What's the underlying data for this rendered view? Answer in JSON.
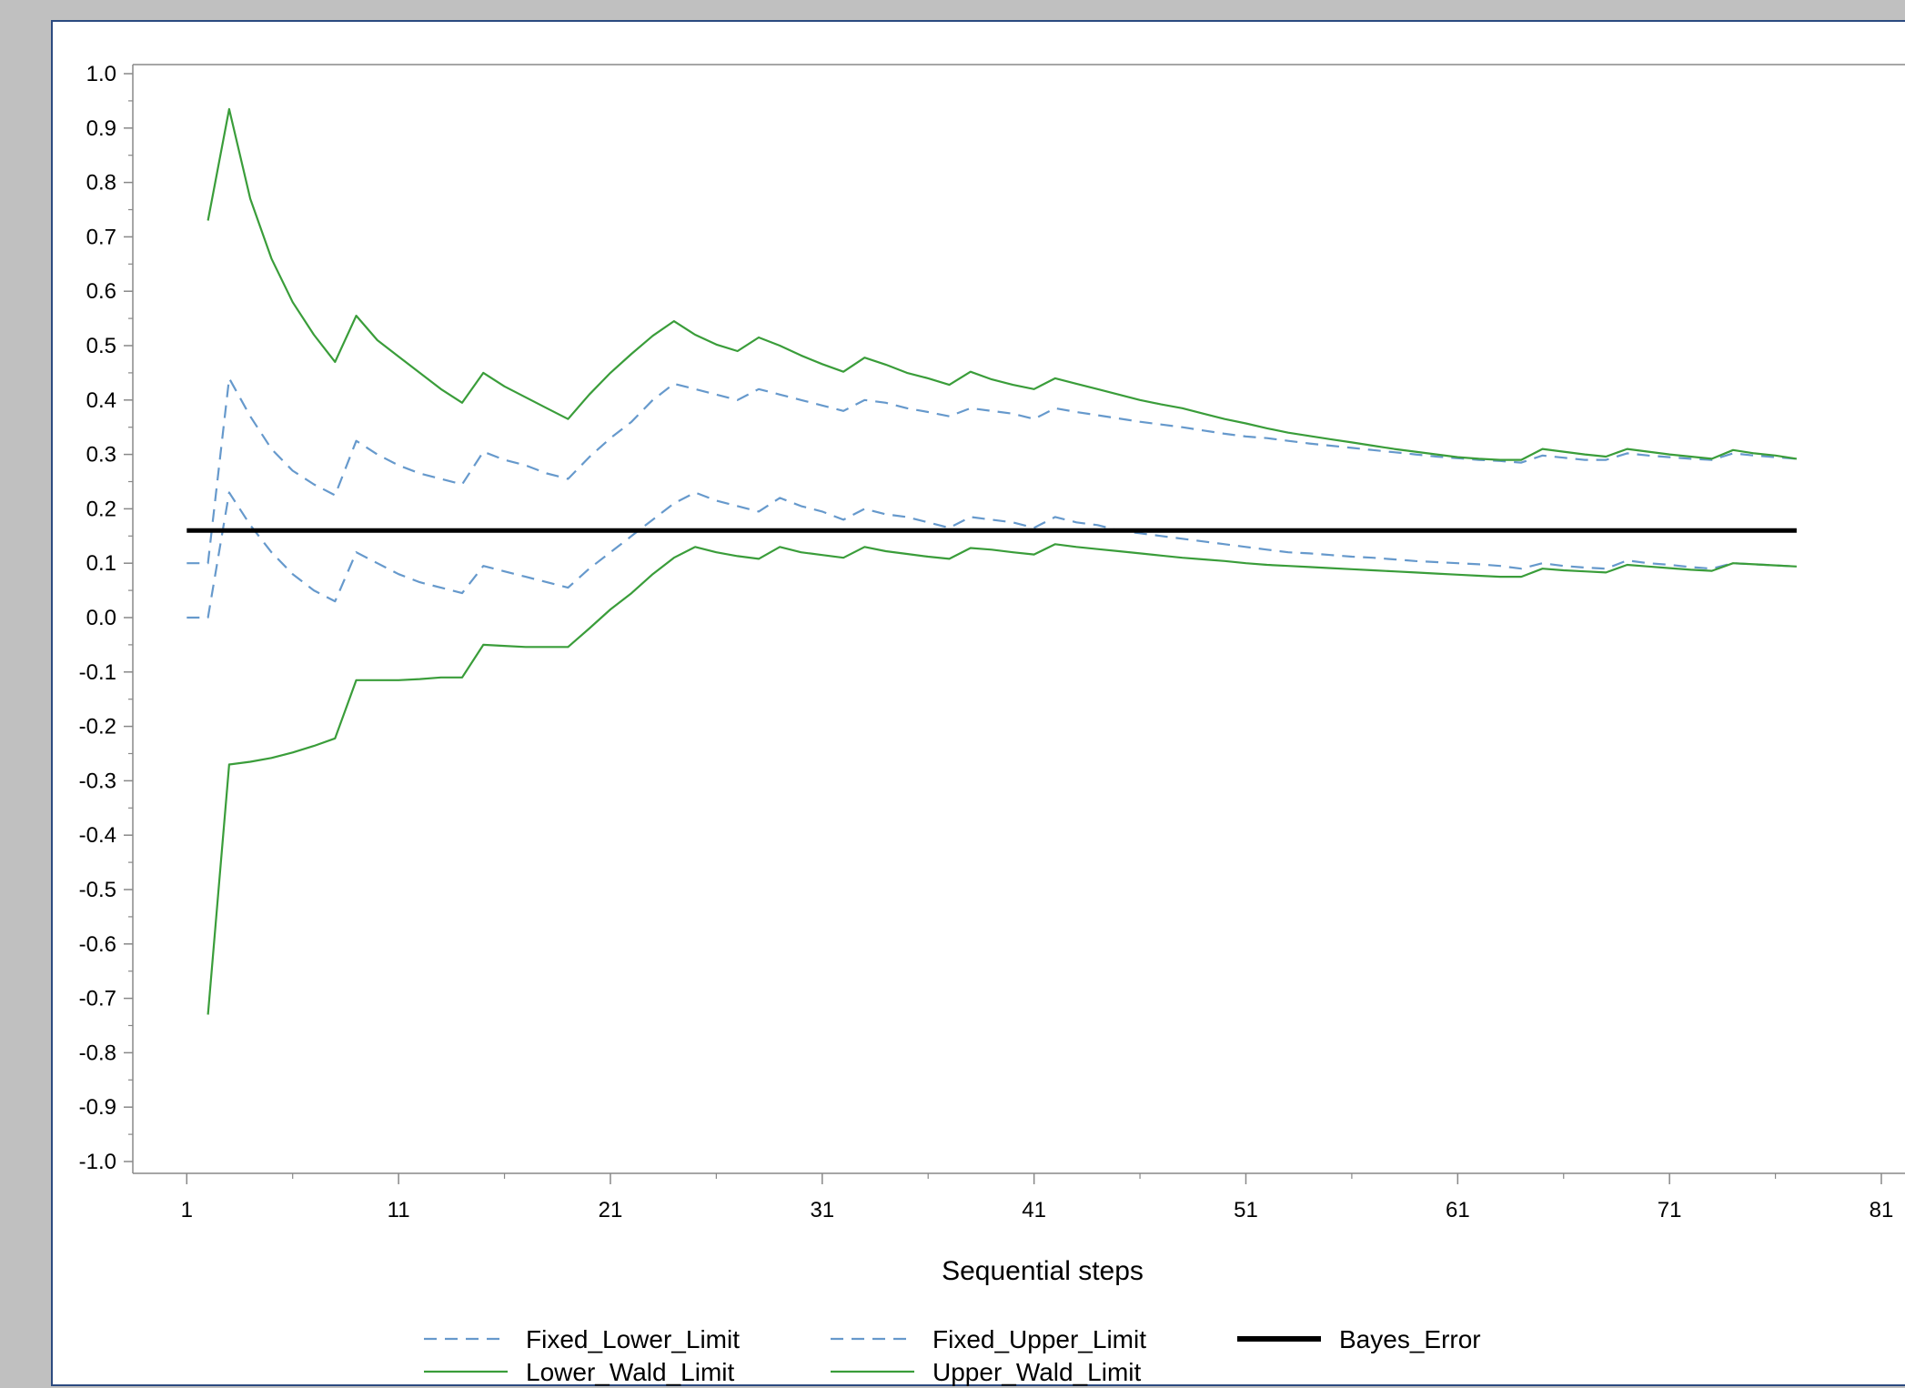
{
  "chart_data": {
    "type": "line",
    "title": "",
    "xlabel": "Sequential steps",
    "ylabel": "",
    "xlim": [
      0,
      81
    ],
    "ylim": [
      -1.0,
      1.0
    ],
    "x_ticks": [
      1,
      11,
      21,
      31,
      41,
      51,
      61,
      71,
      81
    ],
    "y_ticks": [
      1.0,
      0.9,
      0.8,
      0.7,
      0.6,
      0.5,
      0.4,
      0.3,
      0.2,
      0.1,
      0.0,
      -0.1,
      -0.2,
      -0.3,
      -0.4,
      -0.5,
      -0.6,
      -0.7,
      -0.8,
      -0.9,
      -1.0
    ],
    "y_tick_labels": [
      "1.0",
      "0.9",
      "0.8",
      "0.7",
      "0.6",
      "0.5",
      "0.4",
      "0.3",
      "0.2",
      "0.1",
      "0.0",
      "-0.1",
      "-0.2",
      "-0.3",
      "-0.4",
      "-0.5",
      "-0.6",
      "-0.7",
      "-0.8",
      "-0.9",
      "-1.0"
    ],
    "grid": false,
    "legend_position": "bottom",
    "series": [
      {
        "name": "Fixed_Lower_Limit",
        "color": "#6699cc",
        "dash": "dashed",
        "points": [
          [
            1,
            0.0
          ],
          [
            2,
            0.0
          ],
          [
            3,
            0.23
          ],
          [
            4,
            0.17
          ],
          [
            5,
            0.12
          ],
          [
            6,
            0.08
          ],
          [
            7,
            0.05
          ],
          [
            8,
            0.03
          ],
          [
            9,
            0.12
          ],
          [
            10,
            0.1
          ],
          [
            11,
            0.08
          ],
          [
            12,
            0.065
          ],
          [
            13,
            0.055
          ],
          [
            14,
            0.045
          ],
          [
            15,
            0.095
          ],
          [
            16,
            0.085
          ],
          [
            17,
            0.075
          ],
          [
            18,
            0.065
          ],
          [
            19,
            0.055
          ],
          [
            20,
            0.09
          ],
          [
            21,
            0.12
          ],
          [
            22,
            0.15
          ],
          [
            23,
            0.18
          ],
          [
            24,
            0.21
          ],
          [
            25,
            0.23
          ],
          [
            26,
            0.215
          ],
          [
            27,
            0.205
          ],
          [
            28,
            0.195
          ],
          [
            29,
            0.22
          ],
          [
            30,
            0.205
          ],
          [
            31,
            0.195
          ],
          [
            32,
            0.18
          ],
          [
            33,
            0.2
          ],
          [
            34,
            0.19
          ],
          [
            35,
            0.185
          ],
          [
            36,
            0.175
          ],
          [
            37,
            0.165
          ],
          [
            38,
            0.185
          ],
          [
            39,
            0.18
          ],
          [
            40,
            0.175
          ],
          [
            41,
            0.165
          ],
          [
            42,
            0.185
          ],
          [
            43,
            0.175
          ],
          [
            44,
            0.17
          ],
          [
            45,
            0.16
          ],
          [
            46,
            0.155
          ],
          [
            47,
            0.15
          ],
          [
            48,
            0.145
          ],
          [
            49,
            0.14
          ],
          [
            50,
            0.135
          ],
          [
            51,
            0.13
          ],
          [
            52,
            0.125
          ],
          [
            53,
            0.12
          ],
          [
            54,
            0.118
          ],
          [
            55,
            0.115
          ],
          [
            56,
            0.112
          ],
          [
            57,
            0.11
          ],
          [
            58,
            0.107
          ],
          [
            59,
            0.104
          ],
          [
            60,
            0.102
          ],
          [
            61,
            0.1
          ],
          [
            62,
            0.098
          ],
          [
            63,
            0.095
          ],
          [
            64,
            0.09
          ],
          [
            65,
            0.1
          ],
          [
            66,
            0.095
          ],
          [
            67,
            0.092
          ],
          [
            68,
            0.09
          ],
          [
            69,
            0.105
          ],
          [
            70,
            0.1
          ],
          [
            71,
            0.097
          ],
          [
            72,
            0.093
          ],
          [
            73,
            0.09
          ],
          [
            74,
            0.1
          ],
          [
            75,
            0.098
          ],
          [
            76,
            0.096
          ],
          [
            77,
            0.094
          ]
        ]
      },
      {
        "name": "Fixed_Upper_Limit",
        "color": "#6699cc",
        "dash": "dashed",
        "points": [
          [
            1,
            0.1
          ],
          [
            2,
            0.1
          ],
          [
            3,
            0.44
          ],
          [
            4,
            0.37
          ],
          [
            5,
            0.31
          ],
          [
            6,
            0.27
          ],
          [
            7,
            0.245
          ],
          [
            8,
            0.225
          ],
          [
            9,
            0.325
          ],
          [
            10,
            0.3
          ],
          [
            11,
            0.28
          ],
          [
            12,
            0.265
          ],
          [
            13,
            0.255
          ],
          [
            14,
            0.245
          ],
          [
            15,
            0.305
          ],
          [
            16,
            0.29
          ],
          [
            17,
            0.28
          ],
          [
            18,
            0.265
          ],
          [
            19,
            0.255
          ],
          [
            20,
            0.295
          ],
          [
            21,
            0.33
          ],
          [
            22,
            0.36
          ],
          [
            23,
            0.4
          ],
          [
            24,
            0.43
          ],
          [
            25,
            0.42
          ],
          [
            26,
            0.41
          ],
          [
            27,
            0.4
          ],
          [
            28,
            0.42
          ],
          [
            29,
            0.41
          ],
          [
            30,
            0.4
          ],
          [
            31,
            0.39
          ],
          [
            32,
            0.38
          ],
          [
            33,
            0.4
          ],
          [
            34,
            0.395
          ],
          [
            35,
            0.385
          ],
          [
            36,
            0.378
          ],
          [
            37,
            0.37
          ],
          [
            38,
            0.385
          ],
          [
            39,
            0.38
          ],
          [
            40,
            0.375
          ],
          [
            41,
            0.365
          ],
          [
            42,
            0.385
          ],
          [
            43,
            0.378
          ],
          [
            44,
            0.372
          ],
          [
            45,
            0.366
          ],
          [
            46,
            0.36
          ],
          [
            47,
            0.355
          ],
          [
            48,
            0.35
          ],
          [
            49,
            0.344
          ],
          [
            50,
            0.338
          ],
          [
            51,
            0.333
          ],
          [
            52,
            0.33
          ],
          [
            53,
            0.325
          ],
          [
            54,
            0.32
          ],
          [
            55,
            0.316
          ],
          [
            56,
            0.312
          ],
          [
            57,
            0.308
          ],
          [
            58,
            0.304
          ],
          [
            59,
            0.3
          ],
          [
            60,
            0.296
          ],
          [
            61,
            0.293
          ],
          [
            62,
            0.29
          ],
          [
            63,
            0.288
          ],
          [
            64,
            0.285
          ],
          [
            65,
            0.298
          ],
          [
            66,
            0.294
          ],
          [
            67,
            0.29
          ],
          [
            68,
            0.29
          ],
          [
            69,
            0.302
          ],
          [
            70,
            0.298
          ],
          [
            71,
            0.295
          ],
          [
            72,
            0.292
          ],
          [
            73,
            0.29
          ],
          [
            74,
            0.302
          ],
          [
            75,
            0.298
          ],
          [
            76,
            0.295
          ],
          [
            77,
            0.292
          ]
        ]
      },
      {
        "name": "Lower_Wald_Limit",
        "color": "#3a9d3a",
        "dash": "solid",
        "points": [
          [
            2,
            -0.73
          ],
          [
            3,
            -0.27
          ],
          [
            4,
            -0.265
          ],
          [
            5,
            -0.258
          ],
          [
            6,
            -0.248
          ],
          [
            7,
            -0.236
          ],
          [
            8,
            -0.222
          ],
          [
            9,
            -0.115
          ],
          [
            10,
            -0.115
          ],
          [
            11,
            -0.115
          ],
          [
            12,
            -0.113
          ],
          [
            13,
            -0.11
          ],
          [
            14,
            -0.11
          ],
          [
            15,
            -0.05
          ],
          [
            16,
            -0.052
          ],
          [
            17,
            -0.054
          ],
          [
            18,
            -0.054
          ],
          [
            19,
            -0.054
          ],
          [
            20,
            -0.02
          ],
          [
            21,
            0.015
          ],
          [
            22,
            0.045
          ],
          [
            23,
            0.08
          ],
          [
            24,
            0.11
          ],
          [
            25,
            0.13
          ],
          [
            26,
            0.12
          ],
          [
            27,
            0.113
          ],
          [
            28,
            0.108
          ],
          [
            29,
            0.13
          ],
          [
            30,
            0.12
          ],
          [
            31,
            0.115
          ],
          [
            32,
            0.11
          ],
          [
            33,
            0.13
          ],
          [
            34,
            0.122
          ],
          [
            35,
            0.117
          ],
          [
            36,
            0.112
          ],
          [
            37,
            0.108
          ],
          [
            38,
            0.128
          ],
          [
            39,
            0.125
          ],
          [
            40,
            0.12
          ],
          [
            41,
            0.116
          ],
          [
            42,
            0.135
          ],
          [
            43,
            0.13
          ],
          [
            44,
            0.126
          ],
          [
            45,
            0.122
          ],
          [
            46,
            0.118
          ],
          [
            47,
            0.114
          ],
          [
            48,
            0.11
          ],
          [
            49,
            0.107
          ],
          [
            50,
            0.104
          ],
          [
            51,
            0.1
          ],
          [
            52,
            0.097
          ],
          [
            53,
            0.095
          ],
          [
            54,
            0.093
          ],
          [
            55,
            0.091
          ],
          [
            56,
            0.089
          ],
          [
            57,
            0.087
          ],
          [
            58,
            0.085
          ],
          [
            59,
            0.083
          ],
          [
            60,
            0.081
          ],
          [
            61,
            0.079
          ],
          [
            62,
            0.077
          ],
          [
            63,
            0.075
          ],
          [
            64,
            0.075
          ],
          [
            65,
            0.09
          ],
          [
            66,
            0.087
          ],
          [
            67,
            0.085
          ],
          [
            68,
            0.083
          ],
          [
            69,
            0.097
          ],
          [
            70,
            0.094
          ],
          [
            71,
            0.091
          ],
          [
            72,
            0.088
          ],
          [
            73,
            0.086
          ],
          [
            74,
            0.1
          ],
          [
            75,
            0.098
          ],
          [
            76,
            0.096
          ],
          [
            77,
            0.094
          ]
        ]
      },
      {
        "name": "Upper_Wald_Limit",
        "color": "#3a9d3a",
        "dash": "solid",
        "points": [
          [
            2,
            0.73
          ],
          [
            3,
            0.935
          ],
          [
            4,
            0.77
          ],
          [
            5,
            0.66
          ],
          [
            6,
            0.58
          ],
          [
            7,
            0.52
          ],
          [
            8,
            0.47
          ],
          [
            9,
            0.555
          ],
          [
            10,
            0.51
          ],
          [
            11,
            0.48
          ],
          [
            12,
            0.45
          ],
          [
            13,
            0.42
          ],
          [
            14,
            0.395
          ],
          [
            15,
            0.45
          ],
          [
            16,
            0.425
          ],
          [
            17,
            0.405
          ],
          [
            18,
            0.385
          ],
          [
            19,
            0.365
          ],
          [
            20,
            0.41
          ],
          [
            21,
            0.45
          ],
          [
            22,
            0.485
          ],
          [
            23,
            0.518
          ],
          [
            24,
            0.545
          ],
          [
            25,
            0.52
          ],
          [
            26,
            0.502
          ],
          [
            27,
            0.49
          ],
          [
            28,
            0.515
          ],
          [
            29,
            0.5
          ],
          [
            30,
            0.482
          ],
          [
            31,
            0.466
          ],
          [
            32,
            0.452
          ],
          [
            33,
            0.478
          ],
          [
            34,
            0.465
          ],
          [
            35,
            0.45
          ],
          [
            36,
            0.44
          ],
          [
            37,
            0.428
          ],
          [
            38,
            0.452
          ],
          [
            39,
            0.438
          ],
          [
            40,
            0.428
          ],
          [
            41,
            0.42
          ],
          [
            42,
            0.44
          ],
          [
            43,
            0.43
          ],
          [
            44,
            0.42
          ],
          [
            45,
            0.41
          ],
          [
            46,
            0.4
          ],
          [
            47,
            0.392
          ],
          [
            48,
            0.385
          ],
          [
            49,
            0.375
          ],
          [
            50,
            0.365
          ],
          [
            51,
            0.357
          ],
          [
            52,
            0.348
          ],
          [
            53,
            0.34
          ],
          [
            54,
            0.334
          ],
          [
            55,
            0.328
          ],
          [
            56,
            0.322
          ],
          [
            57,
            0.316
          ],
          [
            58,
            0.31
          ],
          [
            59,
            0.305
          ],
          [
            60,
            0.3
          ],
          [
            61,
            0.295
          ],
          [
            62,
            0.292
          ],
          [
            63,
            0.29
          ],
          [
            64,
            0.29
          ],
          [
            65,
            0.31
          ],
          [
            66,
            0.305
          ],
          [
            67,
            0.3
          ],
          [
            68,
            0.296
          ],
          [
            69,
            0.31
          ],
          [
            70,
            0.305
          ],
          [
            71,
            0.3
          ],
          [
            72,
            0.296
          ],
          [
            73,
            0.292
          ],
          [
            74,
            0.308
          ],
          [
            75,
            0.302
          ],
          [
            76,
            0.298
          ],
          [
            77,
            0.292
          ]
        ]
      },
      {
        "name": "Bayes_Error",
        "color": "#000000",
        "dash": "solid",
        "thick": true,
        "points": [
          [
            1,
            0.16
          ],
          [
            77,
            0.16
          ]
        ]
      }
    ]
  }
}
